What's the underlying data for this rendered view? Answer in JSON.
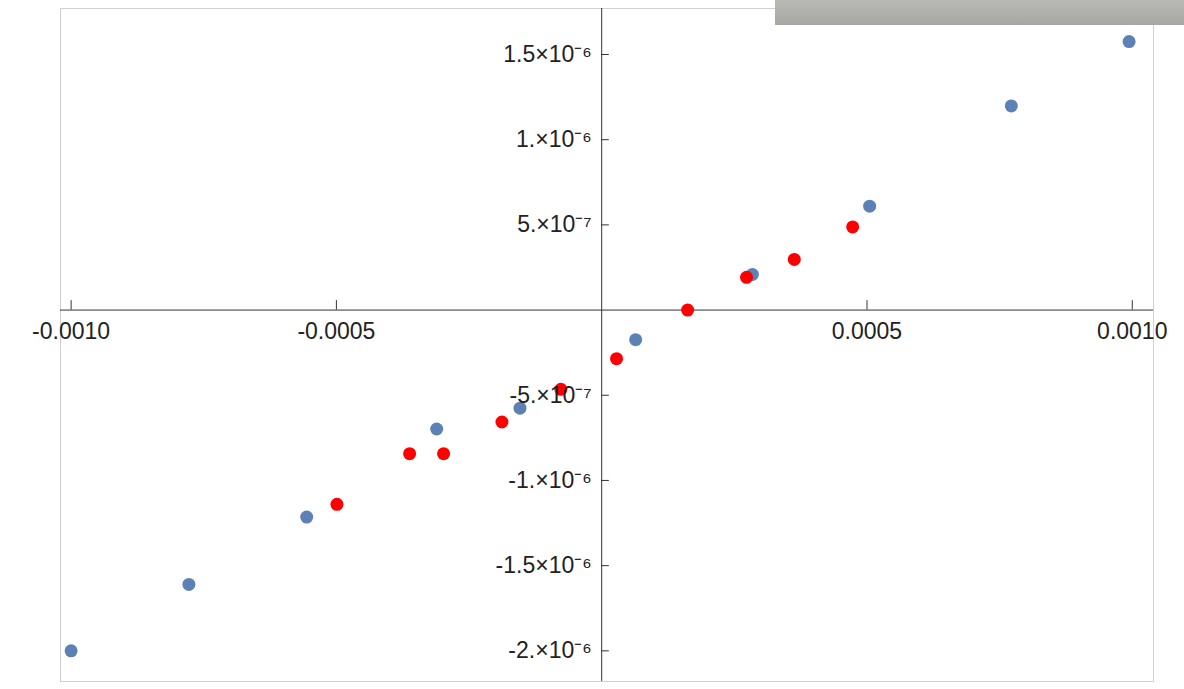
{
  "chart_data": {
    "type": "scatter",
    "marker": "circle",
    "xlim": [
      -0.00102,
      0.00104
    ],
    "ylim": [
      -2.18e-06,
      1.77e-06
    ],
    "xticks": [
      {
        "value": -0.001,
        "label": "-0.0010"
      },
      {
        "value": -0.0005,
        "label": "-0.0005"
      },
      {
        "value": 0.0005,
        "label": "0.0005"
      },
      {
        "value": 0.001,
        "label": "0.0010"
      }
    ],
    "yticks": [
      {
        "value": -2e-06,
        "label": "-2.×10⁻⁶"
      },
      {
        "value": -1.5e-06,
        "label": "-1.5×10⁻⁶"
      },
      {
        "value": -1e-06,
        "label": "-1.×10⁻⁶"
      },
      {
        "value": -5e-07,
        "label": "-5.×10⁻⁷"
      },
      {
        "value": 5e-07,
        "label": "5.×10⁻⁷"
      },
      {
        "value": 1e-06,
        "label": "1.×10⁻⁶"
      },
      {
        "value": 1.5e-06,
        "label": "1.5×10⁻⁶"
      }
    ],
    "series": [
      {
        "color": "#5e81b5",
        "x": [
          -0.001,
          -0.000778,
          -0.000556,
          -0.000311,
          -0.000154,
          6.4e-05,
          0.000284,
          0.000505,
          0.000772,
          0.000994
        ],
        "values": [
          -2e-06,
          -1.61e-06,
          -1.215e-06,
          -6.98e-07,
          -5.76e-07,
          -1.74e-07,
          2.09e-07,
          6.1e-07,
          1.198e-06,
          1.576e-06
        ]
      },
      {
        "color": "#ff0000",
        "x": [
          -0.000499,
          -0.000362,
          -0.000298,
          -0.000188,
          -7.7e-05,
          2.8e-05,
          0.000162,
          0.000273,
          0.000363,
          0.000473
        ],
        "values": [
          -1.14e-06,
          -8.43e-07,
          -8.43e-07,
          -6.57e-07,
          -4.65e-07,
          -2.85e-07,
          0.0,
          1.92e-07,
          2.97e-07,
          4.88e-07
        ]
      }
    ]
  }
}
